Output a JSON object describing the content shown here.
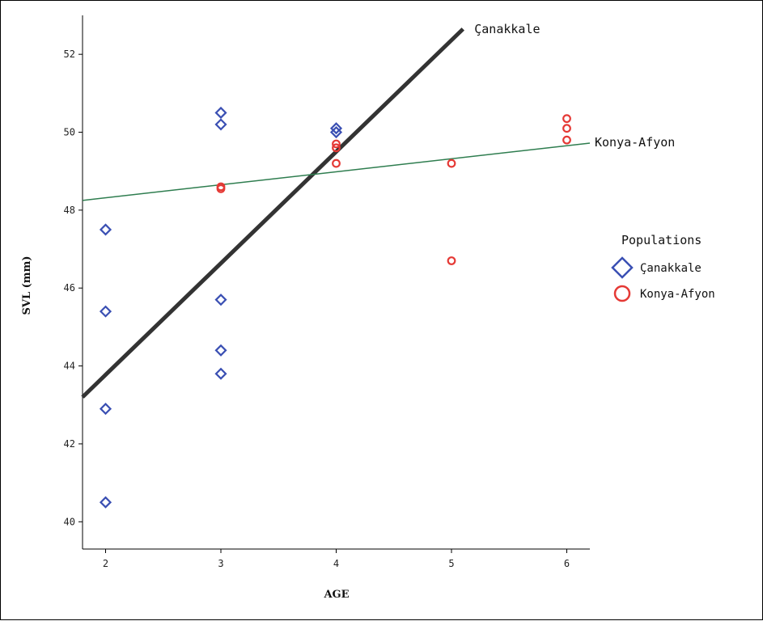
{
  "chart_data": {
    "type": "scatter",
    "xlabel": "AGE",
    "ylabel": "SVL (mm)",
    "xlim": [
      1.8,
      6.2
    ],
    "ylim": [
      39.3,
      53.0
    ],
    "x_ticks": [
      2,
      3,
      4,
      5,
      6
    ],
    "y_ticks": [
      40,
      42,
      44,
      46,
      48,
      50,
      52
    ],
    "grid": false,
    "legend": {
      "title": "Populations",
      "placement": "right",
      "entries": [
        "Çanakkale",
        "Konya-Afyon"
      ]
    },
    "series": [
      {
        "name": "Çanakkale",
        "marker": "diamond",
        "color": "#3a4fb3",
        "points": [
          [
            2,
            47.5
          ],
          [
            2,
            45.4
          ],
          [
            2,
            42.9
          ],
          [
            2,
            40.5
          ],
          [
            3,
            50.5
          ],
          [
            3,
            50.2
          ],
          [
            3,
            45.7
          ],
          [
            3,
            44.4
          ],
          [
            3,
            43.8
          ],
          [
            4,
            50.1
          ],
          [
            4,
            50.0
          ]
        ]
      },
      {
        "name": "Konya-Afyon",
        "marker": "circle",
        "color": "#e53935",
        "points": [
          [
            3,
            48.6
          ],
          [
            3,
            48.55
          ],
          [
            4,
            49.7
          ],
          [
            4,
            49.6
          ],
          [
            4,
            49.2
          ],
          [
            5,
            49.2
          ],
          [
            5,
            46.7
          ],
          [
            6,
            50.35
          ],
          [
            6,
            50.1
          ],
          [
            6,
            49.8
          ]
        ]
      }
    ],
    "fit_lines": [
      {
        "label": "Çanakkale",
        "color": "#333333",
        "from": [
          1.8,
          43.2
        ],
        "to": [
          5.1,
          52.65
        ]
      },
      {
        "label": "Konya-Afyon",
        "color": "#2e7d4f",
        "from": [
          1.8,
          48.25
        ],
        "to": [
          6.2,
          49.72
        ]
      }
    ]
  }
}
